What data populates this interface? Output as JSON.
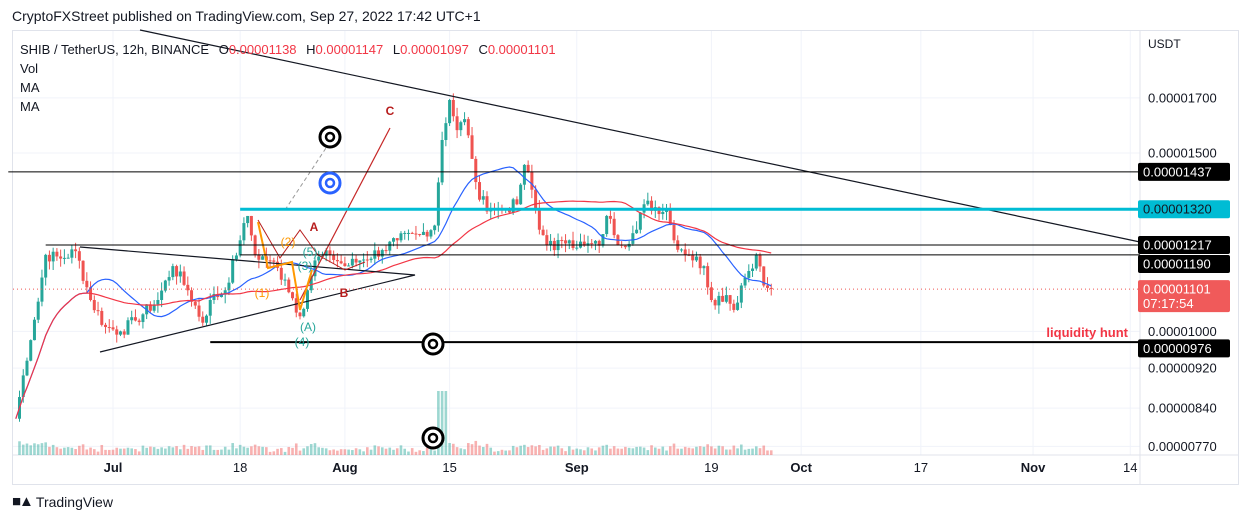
{
  "publisher_line": "CryptoFXStreet published on TradingView.com, Sep 27, 2022 17:42 UTC+1",
  "legend": {
    "symbol": "SHIB / TetherUS, 12h, BINANCE",
    "o_label": "O",
    "o": "0.00001138",
    "h_label": "H",
    "h": "0.00001147",
    "l_label": "L",
    "l": "0.00001097",
    "c_label": "C",
    "c": "0.00001101",
    "indicators": [
      "Vol",
      "MA",
      "MA"
    ]
  },
  "footer": {
    "brand": "TradingView",
    "logo_icon": "tradingview-logo-icon"
  },
  "colors": {
    "up": "#26a69a",
    "down": "#ef5350",
    "ma_fast": "#2962ff",
    "ma_slow": "#f23645",
    "cyan": "#00bcd4",
    "badge_dark": "#000000",
    "badge_price": "#f05a5a"
  },
  "chart_data": {
    "type": "candlestick",
    "title": "SHIB / TetherUS, 12h, BINANCE",
    "scale": "log",
    "price_unit": "USDT",
    "price_factor": 1e-08,
    "ylim": [
      7.5e-06,
      1.9e-05
    ],
    "xlim": [
      "2022-06-17",
      "2022-11-20"
    ],
    "x_ticks": [
      {
        "date": "2022-07-01",
        "label": "Jul",
        "bold": true
      },
      {
        "date": "2022-07-18",
        "label": "18"
      },
      {
        "date": "2022-08-01",
        "label": "Aug",
        "bold": true
      },
      {
        "date": "2022-08-15",
        "label": "15"
      },
      {
        "date": "2022-09-01",
        "label": "Sep",
        "bold": true
      },
      {
        "date": "2022-09-19",
        "label": "19"
      },
      {
        "date": "2022-10-01",
        "label": "Oct",
        "bold": true
      },
      {
        "date": "2022-10-17",
        "label": "17"
      },
      {
        "date": "2022-11-01",
        "label": "Nov",
        "bold": true
      },
      {
        "date": "2022-11-14",
        "label": "14"
      }
    ],
    "y_ticks": [
      "0.00001700",
      "0.00001500",
      "0.00001000",
      "0.00000920",
      "0.00000840",
      "0.00000770"
    ],
    "close_keypoints": [
      [
        "2022-06-18",
        820
      ],
      [
        "2022-06-21",
        1070
      ],
      [
        "2022-06-22",
        1190
      ],
      [
        "2022-06-24",
        1180
      ],
      [
        "2022-06-26",
        1200
      ],
      [
        "2022-06-28",
        1074
      ],
      [
        "2022-06-30",
        1010
      ],
      [
        "2022-07-02",
        1000
      ],
      [
        "2022-07-04",
        1025
      ],
      [
        "2022-07-07",
        1074
      ],
      [
        "2022-07-09",
        1160
      ],
      [
        "2022-07-11",
        1098
      ],
      [
        "2022-07-13",
        1020
      ],
      [
        "2022-07-14",
        1074
      ],
      [
        "2022-07-16",
        1098
      ],
      [
        "2022-07-18",
        1230
      ],
      [
        "2022-07-19",
        1300
      ],
      [
        "2022-07-20",
        1190
      ],
      [
        "2022-07-22",
        1175
      ],
      [
        "2022-07-24",
        1125
      ],
      [
        "2022-07-26",
        1035
      ],
      [
        "2022-07-27",
        1098
      ],
      [
        "2022-07-28",
        1175
      ],
      [
        "2022-07-30",
        1190
      ],
      [
        "2022-08-01",
        1160
      ],
      [
        "2022-08-03",
        1175
      ],
      [
        "2022-08-06",
        1203
      ],
      [
        "2022-08-08",
        1230
      ],
      [
        "2022-08-11",
        1245
      ],
      [
        "2022-08-13",
        1272
      ],
      [
        "2022-08-14",
        1545
      ],
      [
        "2022-08-15",
        1692
      ],
      [
        "2022-08-16",
        1580
      ],
      [
        "2022-08-17",
        1620
      ],
      [
        "2022-08-18",
        1480
      ],
      [
        "2022-08-19",
        1349
      ],
      [
        "2022-08-21",
        1318
      ],
      [
        "2022-08-22",
        1318
      ],
      [
        "2022-08-24",
        1335
      ],
      [
        "2022-08-25",
        1460
      ],
      [
        "2022-08-26",
        1380
      ],
      [
        "2022-08-27",
        1260
      ],
      [
        "2022-08-29",
        1203
      ],
      [
        "2022-08-30",
        1230
      ],
      [
        "2022-08-31",
        1230
      ],
      [
        "2022-09-02",
        1215
      ],
      [
        "2022-09-04",
        1215
      ],
      [
        "2022-09-05",
        1300
      ],
      [
        "2022-09-07",
        1215
      ],
      [
        "2022-09-09",
        1260
      ],
      [
        "2022-09-10",
        1335
      ],
      [
        "2022-09-13",
        1318
      ],
      [
        "2022-09-14",
        1230
      ],
      [
        "2022-09-16",
        1190
      ],
      [
        "2022-09-18",
        1160
      ],
      [
        "2022-09-19",
        1074
      ],
      [
        "2022-09-21",
        1086
      ],
      [
        "2022-09-22",
        1050
      ],
      [
        "2022-09-23",
        1110
      ],
      [
        "2022-09-25",
        1190
      ],
      [
        "2022-09-26",
        1110
      ],
      [
        "2022-09-27",
        1101
      ]
    ],
    "volume_spike_date": "2022-08-14",
    "moving_averages": [
      {
        "name": "MA",
        "period": 20,
        "color": "#2962ff"
      },
      {
        "name": "MA",
        "period": 50,
        "color": "#f23645"
      }
    ],
    "horizontal_levels": [
      {
        "price": 1437,
        "label": "0.00001437",
        "style": "black",
        "from": "2022-06-17"
      },
      {
        "price": 1320,
        "label": "0.00001320",
        "style": "cyan",
        "from": "2022-07-18"
      },
      {
        "price": 1217,
        "label": "0.00001217",
        "style": "black",
        "from": "2022-06-22"
      },
      {
        "price": 1190,
        "label": "0.00001190",
        "style": "black",
        "from": "2022-07-18"
      },
      {
        "price": 976,
        "label": "0.00000976",
        "style": "black-thick",
        "from": "2022-07-14"
      }
    ],
    "current_price": {
      "price": 1101,
      "label": "0.00001101",
      "countdown": "07:17:54"
    },
    "annotations": {
      "wave_labels": [
        "A",
        "B",
        "C"
      ],
      "elliott_labels": [
        "(1)",
        "(2)",
        "(3)",
        "(4)",
        "(5)",
        "(A)"
      ],
      "liquidity_text": "liquidity hunt"
    }
  }
}
